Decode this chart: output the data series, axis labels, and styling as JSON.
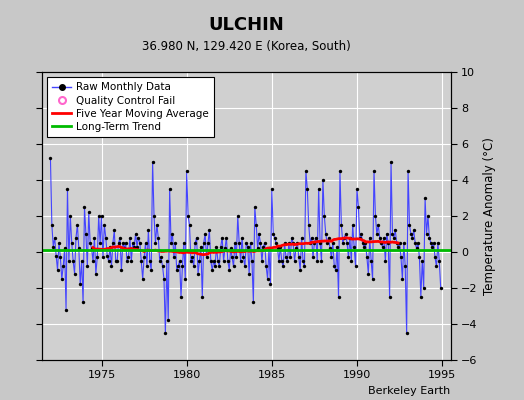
{
  "title": "ULCHIN",
  "subtitle": "36.980 N, 129.420 E (Korea, South)",
  "ylabel": "Temperature Anomaly (°C)",
  "watermark": "Berkeley Earth",
  "xlim": [
    1971.5,
    1995.5
  ],
  "ylim": [
    -6,
    10
  ],
  "yticks": [
    -6,
    -4,
    -2,
    0,
    2,
    4,
    6,
    8,
    10
  ],
  "xticks": [
    1975,
    1980,
    1985,
    1990,
    1995
  ],
  "bg_color": "#c8c8c8",
  "plot_bg_color": "#d0d0d0",
  "grid_color": "#ffffff",
  "raw_line_color": "#4444ff",
  "raw_marker_color": "#000000",
  "ma_color": "#ff0000",
  "trend_color": "#00bb00",
  "legend_qc_color": "#ff66cc",
  "start_year": 1972,
  "n_months": 276,
  "raw_data": [
    5.2,
    1.5,
    0.3,
    0.8,
    -0.2,
    -1.0,
    0.5,
    -0.3,
    -1.5,
    -0.8,
    0.2,
    -3.2,
    3.5,
    -0.5,
    2.0,
    0.5,
    -0.5,
    -1.2,
    0.8,
    1.5,
    0.2,
    -1.8,
    -0.5,
    -2.8,
    2.5,
    1.0,
    -0.8,
    2.2,
    0.5,
    0.2,
    -0.5,
    0.8,
    -1.2,
    -0.3,
    2.0,
    0.5,
    2.0,
    -0.3,
    1.5,
    0.8,
    -0.2,
    -0.5,
    0.3,
    -0.8,
    0.5,
    1.2,
    -0.5,
    -0.5,
    0.5,
    0.8,
    -1.0,
    0.5,
    0.2,
    0.5,
    -0.5,
    -0.3,
    0.8,
    -0.5,
    0.5,
    0.3,
    1.0,
    0.3,
    0.8,
    0.5,
    -0.5,
    -1.5,
    -0.3,
    0.5,
    -0.8,
    1.2,
    -0.5,
    -1.0,
    5.0,
    2.0,
    0.5,
    1.5,
    0.8,
    -0.5,
    -0.3,
    -0.8,
    -1.5,
    -4.5,
    -0.5,
    -3.8,
    3.5,
    0.5,
    1.0,
    -0.3,
    0.5,
    -1.0,
    -0.8,
    -0.5,
    -2.5,
    -0.8,
    0.5,
    -1.5,
    4.5,
    2.0,
    1.5,
    -0.5,
    -0.3,
    -0.8,
    0.5,
    0.8,
    -1.2,
    -0.5,
    0.3,
    -2.5,
    0.5,
    1.0,
    -0.3,
    0.5,
    1.2,
    -0.5,
    -1.0,
    -0.5,
    -0.8,
    0.3,
    -0.5,
    -0.8,
    0.3,
    0.8,
    -0.5,
    0.2,
    0.8,
    -0.5,
    -1.0,
    0.2,
    -0.3,
    -0.8,
    0.5,
    -0.3,
    2.0,
    0.5,
    -0.5,
    0.8,
    -0.3,
    -0.8,
    0.5,
    0.3,
    -1.2,
    0.5,
    -0.5,
    -2.8,
    2.5,
    1.5,
    0.2,
    1.0,
    0.5,
    -0.5,
    0.3,
    0.5,
    -0.8,
    -1.5,
    0.2,
    -1.8,
    3.5,
    1.0,
    0.8,
    0.5,
    0.2,
    -0.5,
    0.3,
    -0.5,
    -0.8,
    0.5,
    -0.3,
    -0.5,
    0.5,
    -0.3,
    0.8,
    0.5,
    -0.5,
    0.2,
    0.5,
    -0.3,
    -1.0,
    0.8,
    -0.5,
    -0.8,
    4.5,
    3.5,
    1.5,
    0.5,
    0.8,
    -0.3,
    0.5,
    0.8,
    -0.5,
    3.5,
    0.5,
    -0.5,
    4.0,
    2.0,
    1.0,
    0.5,
    0.8,
    0.2,
    -0.3,
    0.5,
    -0.8,
    -1.0,
    0.3,
    -2.5,
    4.5,
    1.5,
    0.5,
    0.8,
    1.0,
    0.5,
    -0.3,
    0.8,
    -0.5,
    1.5,
    0.3,
    -0.8,
    3.5,
    2.5,
    0.8,
    1.0,
    0.5,
    0.3,
    0.5,
    -0.3,
    -1.2,
    0.8,
    -0.5,
    -1.5,
    4.5,
    2.0,
    1.0,
    1.5,
    0.8,
    0.5,
    0.3,
    0.8,
    -0.5,
    1.0,
    0.5,
    -2.5,
    5.0,
    1.0,
    0.8,
    1.2,
    0.5,
    0.3,
    0.5,
    -0.3,
    -1.5,
    0.5,
    -0.8,
    -4.5,
    4.5,
    1.5,
    1.0,
    0.8,
    1.2,
    0.5,
    0.2,
    0.5,
    -0.3,
    -2.5,
    -0.5,
    -2.0,
    3.0,
    1.0,
    2.0,
    0.8,
    0.5,
    0.3,
    0.5,
    -0.3,
    -0.8,
    0.5,
    -0.5,
    -2.0
  ]
}
